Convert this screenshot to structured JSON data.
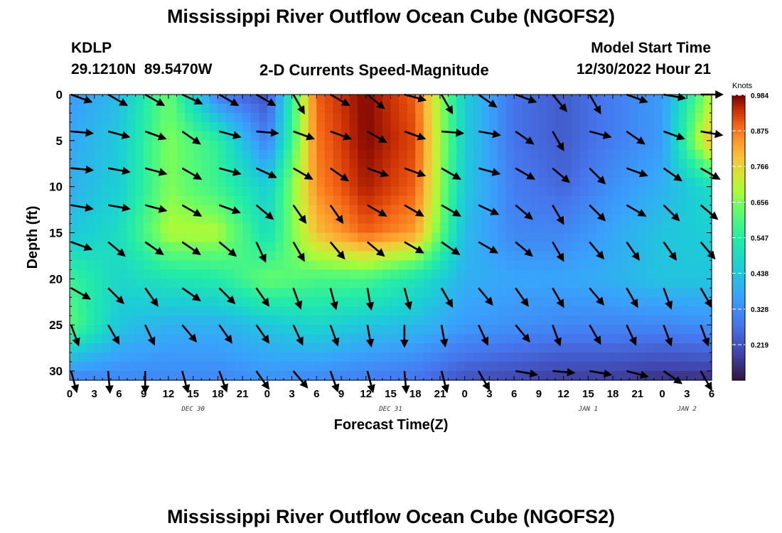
{
  "page": {
    "title_top": "Mississippi River Outflow Ocean Cube (NGOFS2)",
    "title_bottom": "Mississippi River Outflow Ocean Cube (NGOFS2)",
    "station_name": "KDLP",
    "station_coords": "29.1210N  89.5470W",
    "subtitle": "2-D Currents Speed-Magnitude",
    "model_start_label": "Model Start Time",
    "model_start_value": "12/30/2022 Hour 21"
  },
  "chart_data": {
    "type": "heatmap",
    "title": "2-D Currents Speed-Magnitude",
    "xlabel": "Forecast Time(Z)",
    "ylabel": "Depth (ft)",
    "x_tick_labels": [
      "0",
      "3",
      "6",
      "9",
      "12",
      "15",
      "18",
      "21",
      "0",
      "3",
      "6",
      "9",
      "12",
      "15",
      "18",
      "21",
      "0",
      "3",
      "6",
      "9",
      "12",
      "15",
      "18",
      "21",
      "0",
      "3",
      "6"
    ],
    "date_labels": [
      "DEC 30",
      "DEC 31",
      "JAN 1",
      "JAN 2"
    ],
    "y_ticks": [
      0,
      5,
      10,
      15,
      20,
      25,
      30
    ],
    "ylim": [
      31,
      0
    ],
    "colorbar": {
      "unit": "Knots",
      "ticks": [
        0.984,
        0.875,
        0.766,
        0.656,
        0.547,
        0.438,
        0.328,
        0.219
      ],
      "range": [
        0.11,
        0.984
      ]
    },
    "vector_hours": [
      0,
      4.5,
      9,
      13.5,
      18,
      22.5,
      27,
      31.5,
      36,
      40.5,
      45,
      49.5,
      54,
      58.5,
      63,
      67.5,
      72,
      76.5
    ],
    "vector_depths": [
      0,
      4,
      8,
      12,
      16,
      21,
      25,
      30
    ],
    "speed_grid_hours": [
      0,
      6,
      12,
      18,
      24,
      30,
      36,
      42,
      48,
      54,
      60,
      66,
      72,
      78
    ],
    "speed_grid_depths": [
      0,
      5,
      10,
      15,
      20,
      25,
      31
    ],
    "speed_grid": [
      [
        0.36,
        0.42,
        0.64,
        0.3,
        0.22,
        0.9,
        0.98,
        0.9,
        0.46,
        0.28,
        0.24,
        0.3,
        0.36,
        0.7
      ],
      [
        0.38,
        0.45,
        0.66,
        0.56,
        0.3,
        0.88,
        0.98,
        0.92,
        0.46,
        0.28,
        0.24,
        0.3,
        0.36,
        0.82
      ],
      [
        0.4,
        0.46,
        0.66,
        0.58,
        0.46,
        0.86,
        0.96,
        0.9,
        0.45,
        0.3,
        0.26,
        0.34,
        0.4,
        0.5
      ],
      [
        0.44,
        0.5,
        0.7,
        0.7,
        0.5,
        0.8,
        0.9,
        0.84,
        0.42,
        0.32,
        0.32,
        0.38,
        0.44,
        0.46
      ],
      [
        0.58,
        0.48,
        0.52,
        0.54,
        0.64,
        0.6,
        0.6,
        0.52,
        0.4,
        0.38,
        0.38,
        0.4,
        0.44,
        0.44
      ],
      [
        0.62,
        0.44,
        0.4,
        0.4,
        0.44,
        0.48,
        0.44,
        0.42,
        0.36,
        0.34,
        0.32,
        0.32,
        0.32,
        0.34
      ],
      [
        0.3,
        0.32,
        0.32,
        0.32,
        0.34,
        0.32,
        0.3,
        0.28,
        0.22,
        0.2,
        0.18,
        0.18,
        0.16,
        0.16
      ]
    ],
    "direction_deg": [
      [
        110,
        120,
        120,
        115,
        120,
        120,
        150,
        120,
        130,
        105,
        150,
        125,
        110,
        140,
        150,
        110,
        100,
        90
      ],
      [
        95,
        105,
        110,
        125,
        105,
        95,
        110,
        110,
        120,
        110,
        95,
        100,
        125,
        150,
        105,
        125,
        110,
        100
      ],
      [
        95,
        100,
        105,
        120,
        105,
        115,
        120,
        125,
        110,
        110,
        120,
        105,
        120,
        130,
        135,
        110,
        125,
        120
      ],
      [
        100,
        100,
        105,
        120,
        110,
        130,
        145,
        145,
        120,
        120,
        120,
        115,
        130,
        150,
        135,
        120,
        135,
        130
      ],
      [
        110,
        130,
        125,
        125,
        130,
        155,
        150,
        140,
        130,
        120,
        125,
        120,
        130,
        150,
        140,
        145,
        145,
        140
      ],
      [
        120,
        135,
        145,
        125,
        135,
        145,
        160,
        165,
        170,
        165,
        150,
        140,
        145,
        150,
        140,
        150,
        160,
        150
      ],
      [
        160,
        150,
        155,
        140,
        145,
        145,
        155,
        160,
        170,
        180,
        170,
        155,
        140,
        160,
        150,
        155,
        160,
        160
      ],
      [
        165,
        175,
        180,
        165,
        160,
        145,
        140,
        160,
        165,
        175,
        165,
        150,
        100,
        95,
        100,
        105,
        125,
        150
      ]
    ]
  }
}
